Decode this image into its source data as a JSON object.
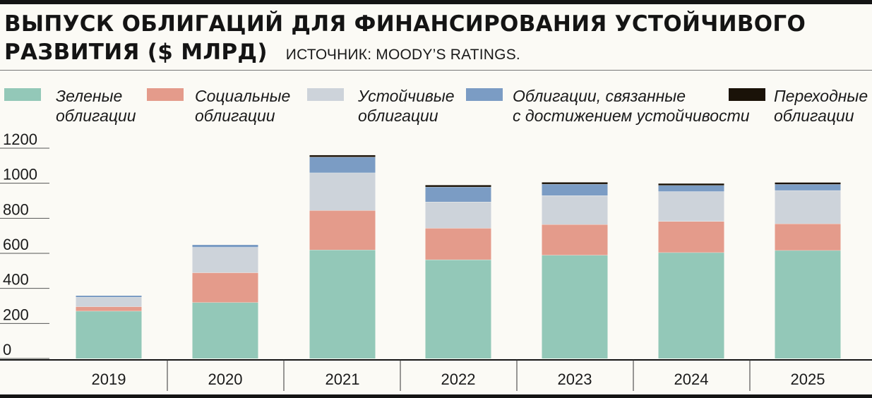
{
  "header": {
    "title_line1": "ВЫПУСК ОБЛИГАЦИЙ ДЛЯ ФИНАНСИРОВАНИЯ УСТОЙЧИВОГО",
    "title_line2": "РАЗВИТИЯ ($ МЛРД)",
    "source": "ИСТОЧНИК: MOODY’S RATINGS."
  },
  "legend": [
    {
      "label": "Зеленые\nоблигации",
      "color": "#93c8b8"
    },
    {
      "label": "Социальные\nоблигации",
      "color": "#e49b8b"
    },
    {
      "label": "Устойчивые\nоблигации",
      "color": "#cdd3da"
    },
    {
      "label": "Облигации, связанные\nс достижением устойчивости",
      "color": "#7b9cc4"
    },
    {
      "label": "Переходные\nоблигации",
      "color": "#1a1208"
    }
  ],
  "chart_data": {
    "type": "bar",
    "stacked": true,
    "title": "Выпуск облигаций для финансирования устойчивого развития ($ млрд)",
    "xlabel": "",
    "ylabel": "",
    "ylim": [
      0,
      1200
    ],
    "yticks": [
      0,
      200,
      400,
      600,
      800,
      1000,
      1200
    ],
    "categories": [
      "2019",
      "2020",
      "2021",
      "2022",
      "2023",
      "2024",
      "2025"
    ],
    "series": [
      {
        "name": "Зеленые облигации",
        "color": "#93c8b8",
        "values": [
          271,
          320,
          620,
          564,
          590,
          605,
          617
        ]
      },
      {
        "name": "Социальные облигации",
        "color": "#e49b8b",
        "values": [
          25,
          170,
          225,
          180,
          175,
          178,
          152
        ]
      },
      {
        "name": "Устойчивые облигации",
        "color": "#cdd3da",
        "values": [
          54,
          145,
          215,
          150,
          165,
          170,
          190
        ]
      },
      {
        "name": "Облигации, связанные с достижением устойчивости",
        "color": "#7b9cc4",
        "values": [
          10,
          15,
          90,
          85,
          65,
          35,
          35
        ]
      },
      {
        "name": "Переходные облигации",
        "color": "#1a1208",
        "values": [
          0,
          0,
          10,
          10,
          10,
          10,
          10
        ]
      }
    ]
  }
}
